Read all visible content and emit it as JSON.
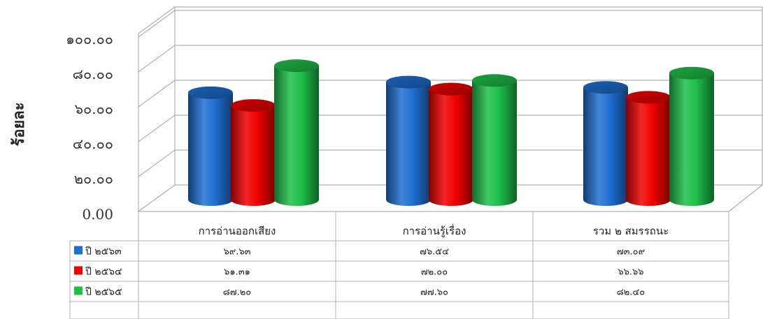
{
  "chart_data": {
    "type": "bar",
    "title": "",
    "ylabel": "ร้อยละ",
    "xlabel": "",
    "ylim": [
      0,
      100
    ],
    "yticks": [
      "0.00",
      "๒๐.๐๐",
      "๔๐.๐๐",
      "๖๐.๐๐",
      "๘๐.๐๐",
      "๑๐๐.๐๐"
    ],
    "categories": [
      "การอ่านออกเสียง",
      "การอ่านรู้เรื่อง",
      "รวม ๒ สมรรถนะ"
    ],
    "series": [
      {
        "name": "ปี ๒๕๖๓",
        "color": "#1f6fd1",
        "values": [
          69.63,
          76.54,
          73.09
        ],
        "labels": [
          "๖๙.๖๓",
          "๗๖.๕๔",
          "๗๓.๐๙"
        ]
      },
      {
        "name": "ปี ๒๕๖๔",
        "color": "#f00000",
        "values": [
          61.31,
          72.0,
          66.66
        ],
        "labels": [
          "๖๑.๓๑",
          "๗๒.๐๐",
          "๖๖.๖๖"
        ]
      },
      {
        "name": "ปี ๒๕๖๕",
        "color": "#1ec04a",
        "values": [
          87.2,
          77.6,
          82.4
        ],
        "labels": [
          "๘๗.๒๐",
          "๗๗.๖๐",
          "๘๒.๔๐"
        ]
      }
    ],
    "legend_position": "data-table",
    "grid": true
  }
}
